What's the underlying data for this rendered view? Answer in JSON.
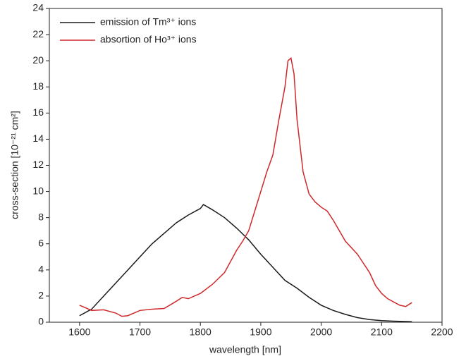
{
  "chart_data": {
    "type": "line",
    "xlabel": "wavelength [nm]",
    "ylabel": "cross-section [10⁻²¹ cm²]",
    "xlim": [
      1550,
      2200
    ],
    "xticks": [
      1600,
      1700,
      1800,
      1900,
      2000,
      2100,
      2200
    ],
    "ylim": [
      0,
      24
    ],
    "yticks": [
      0,
      2,
      4,
      6,
      8,
      10,
      12,
      14,
      16,
      18,
      20,
      22,
      24
    ],
    "legend": "upper-left",
    "series": [
      {
        "name": "emission of Tm³⁺ ions",
        "color": "#1a1a1a",
        "x": [
          1600,
          1620,
          1640,
          1660,
          1680,
          1700,
          1720,
          1740,
          1760,
          1780,
          1800,
          1805,
          1820,
          1840,
          1860,
          1880,
          1900,
          1920,
          1940,
          1960,
          1980,
          2000,
          2020,
          2040,
          2060,
          2080,
          2100,
          2120,
          2150
        ],
        "values": [
          0.5,
          1.0,
          2.0,
          3.0,
          4.0,
          5.0,
          6.0,
          6.8,
          7.6,
          8.2,
          8.7,
          9.0,
          8.6,
          8.0,
          7.2,
          6.3,
          5.2,
          4.2,
          3.2,
          2.6,
          1.9,
          1.3,
          0.9,
          0.6,
          0.35,
          0.2,
          0.12,
          0.08,
          0.04
        ]
      },
      {
        "name": "absortion of Ho³⁺ ions",
        "color": "#d0282a",
        "x": [
          1600,
          1610,
          1620,
          1640,
          1660,
          1670,
          1680,
          1700,
          1720,
          1740,
          1760,
          1770,
          1780,
          1800,
          1820,
          1840,
          1860,
          1870,
          1880,
          1890,
          1900,
          1910,
          1920,
          1930,
          1940,
          1945,
          1950,
          1955,
          1960,
          1970,
          1980,
          1990,
          2000,
          2010,
          2020,
          2030,
          2040,
          2060,
          2080,
          2090,
          2100,
          2110,
          2130,
          2140,
          2150
        ],
        "values": [
          1.3,
          1.1,
          0.9,
          0.95,
          0.7,
          0.45,
          0.5,
          0.9,
          1.0,
          1.05,
          1.6,
          1.9,
          1.8,
          2.2,
          2.9,
          3.8,
          5.5,
          6.2,
          7.0,
          8.5,
          10.0,
          11.5,
          12.8,
          15.5,
          18.0,
          20.0,
          20.2,
          19.0,
          15.5,
          11.5,
          9.8,
          9.2,
          8.8,
          8.5,
          7.8,
          7.0,
          6.2,
          5.2,
          3.8,
          2.8,
          2.2,
          1.8,
          1.3,
          1.2,
          1.5
        ]
      }
    ]
  }
}
